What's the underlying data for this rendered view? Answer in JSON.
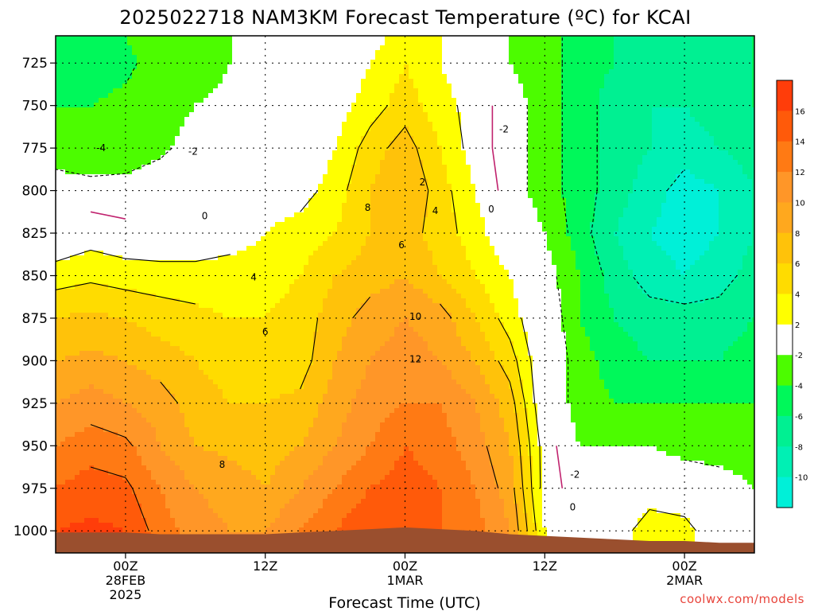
{
  "chart_data": {
    "type": "heatmap",
    "title": "2025022718 NAM3KM Forecast Temperature (ºC) for KCAI",
    "xlabel": "Forecast Time (UTC)",
    "ylabel": "",
    "credit": "coolwx.com/models",
    "x_tick_labels": [
      {
        "value": 6,
        "lines": [
          "00Z",
          "28FEB",
          "2025"
        ]
      },
      {
        "value": 18,
        "lines": [
          "12Z"
        ]
      },
      {
        "value": 30,
        "lines": [
          "00Z",
          "1MAR"
        ]
      },
      {
        "value": 42,
        "lines": [
          "12Z"
        ]
      },
      {
        "value": 54,
        "lines": [
          "00Z",
          "2MAR"
        ]
      }
    ],
    "xlim": [
      0,
      60
    ],
    "y_ticks": [
      725,
      750,
      775,
      800,
      825,
      850,
      875,
      900,
      925,
      950,
      975,
      1000
    ],
    "ylim": [
      1013,
      709
    ],
    "x": [
      0,
      3,
      6,
      9,
      12,
      15,
      18,
      21,
      24,
      27,
      30,
      33,
      36,
      39,
      42,
      45,
      48,
      51,
      54,
      57,
      60
    ],
    "pressure_levels": [
      1000,
      975,
      950,
      925,
      900,
      875,
      850,
      825,
      800,
      775,
      750,
      725,
      710
    ],
    "temperature": [
      [
        16,
        16.5,
        16,
        13,
        11,
        10,
        10,
        12,
        14,
        16,
        16,
        14,
        13,
        10,
        2,
        0,
        0,
        4,
        3,
        0,
        0
      ],
      [
        14,
        15,
        14.5,
        12,
        10,
        9,
        8,
        10,
        12,
        14,
        15,
        14,
        12,
        9,
        1,
        -1,
        -1,
        0,
        0,
        -1,
        -2
      ],
      [
        12,
        13,
        12.5,
        10,
        8,
        7.5,
        7,
        8,
        10,
        12,
        14,
        13,
        11,
        8,
        1,
        -2,
        -2,
        -2,
        -3,
        -3,
        -3
      ],
      [
        10,
        11,
        10,
        9,
        7,
        6,
        6,
        6.5,
        9,
        11,
        12,
        12,
        10,
        7,
        0,
        -3,
        -4,
        -4,
        -4,
        -4,
        -4
      ],
      [
        8,
        8.5,
        8,
        7,
        6,
        5,
        5,
        5,
        8,
        10,
        11,
        10,
        8,
        5,
        0,
        -3,
        -5,
        -6,
        -6,
        -6,
        -5
      ],
      [
        6,
        6.5,
        6,
        5,
        4.5,
        4,
        4,
        5,
        7,
        9,
        10,
        9,
        6,
        3,
        0,
        -4,
        -6,
        -7,
        -7,
        -7,
        -6
      ],
      [
        3,
        3.5,
        3,
        3,
        3,
        3,
        3,
        4,
        6,
        7,
        8,
        6,
        4,
        2,
        -1,
        -4,
        -7,
        -9,
        -10,
        -9,
        -7
      ],
      [
        0,
        1,
        0.5,
        0,
        0,
        1,
        2,
        3,
        4,
        6,
        7,
        5,
        3,
        0,
        -2,
        -5,
        -8,
        -10,
        -11,
        -10,
        -8
      ],
      [
        -1,
        -1,
        -1,
        -0.5,
        0,
        0,
        0.5,
        1,
        3,
        6,
        8,
        5,
        2,
        -1,
        -3,
        -5,
        -7,
        -9,
        -11,
        -10,
        -8
      ],
      [
        -3,
        -4,
        -3.5,
        -2.5,
        -1,
        -1,
        0,
        0,
        2,
        5,
        7,
        4,
        1,
        -1,
        -3,
        -5,
        -7,
        -8,
        -9,
        -8,
        -7
      ],
      [
        -4,
        -4,
        -3.5,
        -3,
        -2,
        -1.5,
        -1,
        -0.5,
        1,
        3,
        5,
        3,
        1,
        -1,
        -3,
        -5,
        -7,
        -8,
        -8,
        -7,
        -6
      ],
      [
        -5,
        -5,
        -4.5,
        -3,
        -3,
        -2,
        -1,
        0,
        0,
        2,
        4,
        2,
        0,
        -2,
        -3,
        -5,
        -6,
        -7,
        -7,
        -7,
        -6
      ],
      [
        -5,
        -5,
        -4,
        -3,
        -3,
        -2,
        -1,
        0,
        0,
        1,
        3,
        2,
        0,
        -2,
        -3,
        -5,
        -6,
        -7,
        -7,
        -7,
        -6
      ]
    ],
    "ground_pressure": [
      1001,
      1001,
      1001,
      1002,
      1002,
      1002,
      1002,
      1001,
      1000,
      999,
      998,
      999,
      1000,
      1002,
      1003,
      1004,
      1005,
      1006,
      1006,
      1007,
      1007
    ],
    "contour_labels": [
      {
        "text": "-4",
        "x": 3.9,
        "p": 775
      },
      {
        "text": "-2",
        "x": 11.8,
        "p": 777
      },
      {
        "text": "0",
        "x": 12.8,
        "p": 815
      },
      {
        "text": "4",
        "x": 17,
        "p": 851
      },
      {
        "text": "6",
        "x": 18,
        "p": 883
      },
      {
        "text": "8",
        "x": 14.3,
        "p": 961
      },
      {
        "text": "8",
        "x": 26.8,
        "p": 810
      },
      {
        "text": "6",
        "x": 29.7,
        "p": 832
      },
      {
        "text": "2",
        "x": 31.5,
        "p": 795
      },
      {
        "text": "4",
        "x": 32.6,
        "p": 812
      },
      {
        "text": "10",
        "x": 30.9,
        "p": 874
      },
      {
        "text": "12",
        "x": 30.9,
        "p": 899
      },
      {
        "text": "-2",
        "x": 38.5,
        "p": 764
      },
      {
        "text": "0",
        "x": 37.4,
        "p": 811
      },
      {
        "text": "-2",
        "x": 44.6,
        "p": 967
      },
      {
        "text": "0",
        "x": 44.4,
        "p": 986
      }
    ],
    "colorbar": {
      "ticks": [
        16,
        14,
        12,
        10,
        8,
        6,
        4,
        2,
        -2,
        -4,
        -6,
        -8,
        -10
      ],
      "bands": [
        {
          "from": 16,
          "to": 18,
          "color": "#ff3d0a"
        },
        {
          "from": 14,
          "to": 16,
          "color": "#ff5a0a"
        },
        {
          "from": 12,
          "to": 14,
          "color": "#ff7a14"
        },
        {
          "from": 10,
          "to": 12,
          "color": "#ff9628"
        },
        {
          "from": 8,
          "to": 10,
          "color": "#ffa81e"
        },
        {
          "from": 6,
          "to": 8,
          "color": "#ffc20a"
        },
        {
          "from": 4,
          "to": 6,
          "color": "#ffdc00"
        },
        {
          "from": 2,
          "to": 4,
          "color": "#ffff00"
        },
        {
          "from": -2,
          "to": 2,
          "color": "#ffffff"
        },
        {
          "from": -4,
          "to": -2,
          "color": "#4cfc00"
        },
        {
          "from": -6,
          "to": -4,
          "color": "#00f85a"
        },
        {
          "from": -8,
          "to": -6,
          "color": "#00f092"
        },
        {
          "from": -10,
          "to": -8,
          "color": "#00f0b4"
        },
        {
          "from": -12,
          "to": -10,
          "color": "#00f0d8"
        }
      ]
    },
    "colors": {
      "zero_contour": "#c0226e",
      "ground": "#9a4f2e",
      "grid": "#000000"
    }
  }
}
